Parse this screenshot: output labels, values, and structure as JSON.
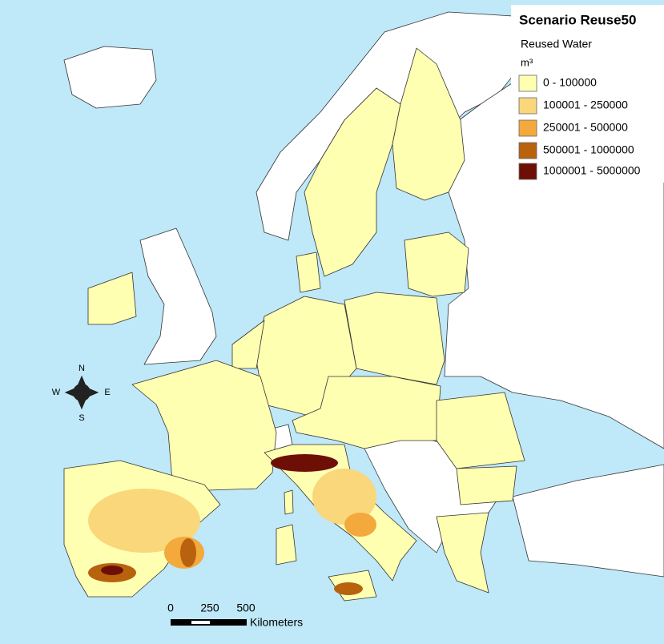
{
  "legend": {
    "title": "Scenario Reuse50",
    "subtitle": "Reused Water",
    "unit": "m³",
    "classes": [
      {
        "label": "0 - 100000",
        "color": "#ffffb2"
      },
      {
        "label": "100001 - 250000",
        "color": "#fad77b"
      },
      {
        "label": "250001 - 500000",
        "color": "#f4a93c"
      },
      {
        "label": "500001 - 1000000",
        "color": "#b8620e"
      },
      {
        "label": "1000001 - 5000000",
        "color": "#6e0f05"
      }
    ]
  },
  "compass": {
    "n": "N",
    "e": "E",
    "s": "S",
    "w": "W"
  },
  "scale_bar": {
    "ticks": [
      0,
      250,
      500
    ],
    "unit": "Kilometers"
  }
}
